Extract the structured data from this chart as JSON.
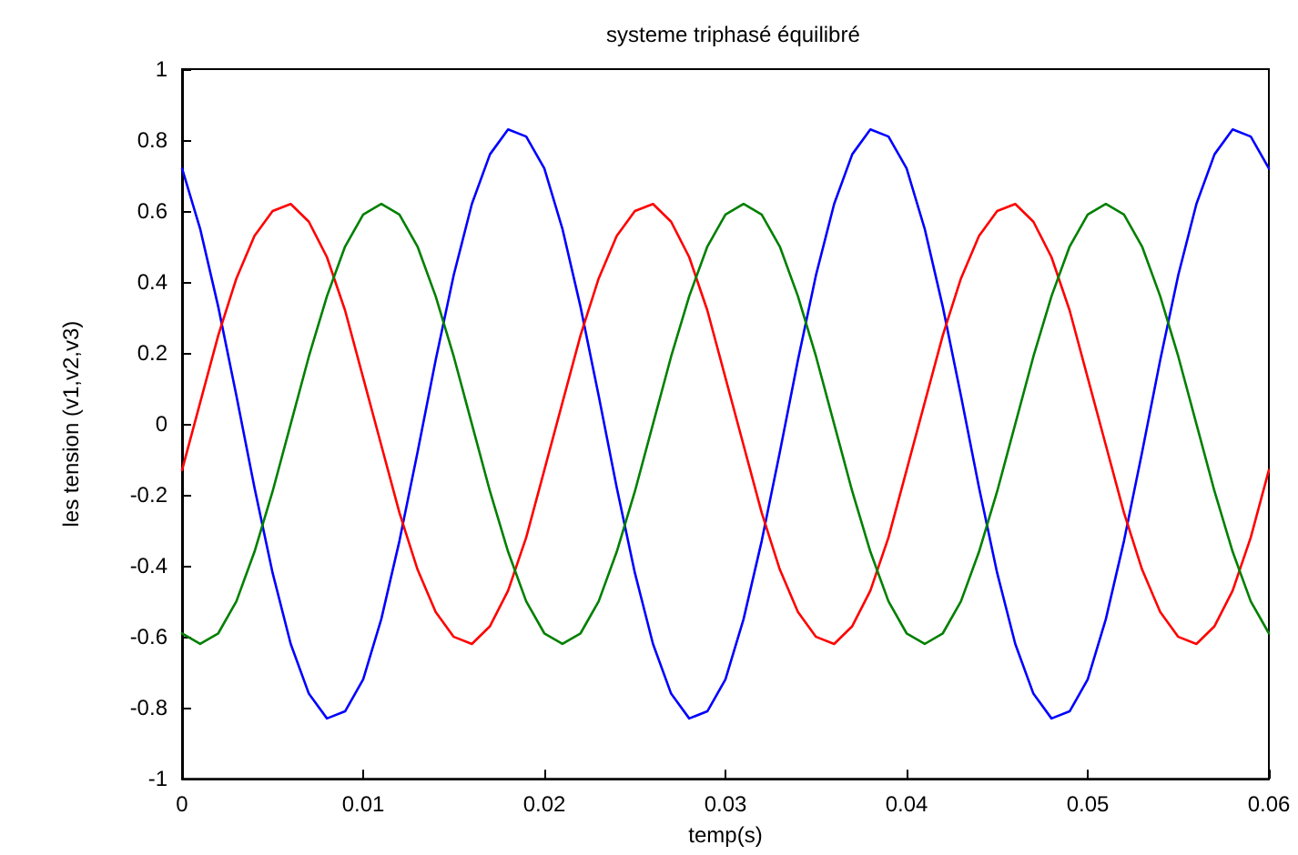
{
  "chart_data": {
    "type": "line",
    "title": "systeme triphasé équilibré",
    "xlabel": "temp(s)",
    "ylabel": "les tension (v1,v2,v3)",
    "x": [
      0,
      0.001,
      0.002,
      0.003,
      0.004,
      0.005,
      0.006,
      0.007,
      0.008,
      0.009,
      0.01,
      0.011,
      0.012,
      0.013,
      0.014,
      0.015,
      0.016,
      0.017,
      0.018,
      0.019,
      0.02,
      0.021,
      0.022,
      0.023,
      0.024,
      0.025,
      0.026,
      0.027,
      0.028,
      0.029,
      0.03,
      0.031,
      0.032,
      0.033,
      0.034,
      0.035,
      0.036,
      0.037,
      0.038,
      0.039,
      0.04,
      0.041,
      0.042,
      0.043,
      0.044,
      0.045,
      0.046,
      0.047,
      0.048,
      0.049,
      0.05,
      0.051,
      0.052,
      0.053,
      0.054,
      0.055,
      0.056,
      0.057,
      0.058,
      0.059,
      0.06
    ],
    "series": [
      {
        "color": "#0000ff",
        "values": [
          0.72,
          0.55,
          0.33,
          0.08,
          -0.18,
          -0.42,
          -0.62,
          -0.76,
          -0.83,
          -0.81,
          -0.72,
          -0.55,
          -0.33,
          -0.08,
          0.18,
          0.42,
          0.62,
          0.76,
          0.83,
          0.81,
          0.72,
          0.55,
          0.33,
          0.08,
          -0.18,
          -0.42,
          -0.62,
          -0.76,
          -0.83,
          -0.81,
          -0.72,
          -0.55,
          -0.33,
          -0.08,
          0.18,
          0.42,
          0.62,
          0.76,
          0.83,
          0.81,
          0.72,
          0.55,
          0.33,
          0.08,
          -0.18,
          -0.42,
          -0.62,
          -0.76,
          -0.83,
          -0.81,
          -0.72,
          -0.55,
          -0.33,
          -0.08,
          0.18,
          0.42,
          0.62,
          0.76,
          0.83,
          0.81,
          0.72
        ]
      },
      {
        "color": "#ff0000",
        "values": [
          -0.13,
          0.06,
          0.25,
          0.41,
          0.53,
          0.6,
          0.62,
          0.57,
          0.47,
          0.32,
          0.13,
          -0.06,
          -0.25,
          -0.41,
          -0.53,
          -0.6,
          -0.62,
          -0.57,
          -0.47,
          -0.32,
          -0.13,
          0.06,
          0.25,
          0.41,
          0.53,
          0.6,
          0.62,
          0.57,
          0.47,
          0.32,
          0.13,
          -0.06,
          -0.25,
          -0.41,
          -0.53,
          -0.6,
          -0.62,
          -0.57,
          -0.47,
          -0.32,
          -0.13,
          0.06,
          0.25,
          0.41,
          0.53,
          0.6,
          0.62,
          0.57,
          0.47,
          0.32,
          0.13,
          -0.06,
          -0.25,
          -0.41,
          -0.53,
          -0.6,
          -0.62,
          -0.57,
          -0.47,
          -0.32,
          -0.13
        ]
      },
      {
        "color": "#008000",
        "values": [
          -0.59,
          -0.62,
          -0.59,
          -0.5,
          -0.36,
          -0.19,
          0,
          0.19,
          0.36,
          0.5,
          0.59,
          0.62,
          0.59,
          0.5,
          0.36,
          0.19,
          0,
          -0.19,
          -0.36,
          -0.5,
          -0.59,
          -0.62,
          -0.59,
          -0.5,
          -0.36,
          -0.19,
          0,
          0.19,
          0.36,
          0.5,
          0.59,
          0.62,
          0.59,
          0.5,
          0.36,
          0.19,
          0,
          -0.19,
          -0.36,
          -0.5,
          -0.59,
          -0.62,
          -0.59,
          -0.5,
          -0.36,
          -0.19,
          0,
          0.19,
          0.36,
          0.5,
          0.59,
          0.62,
          0.59,
          0.5,
          0.36,
          0.19,
          0,
          -0.19,
          -0.36,
          -0.5,
          -0.59
        ]
      }
    ],
    "xlim": [
      0,
      0.06
    ],
    "xticks": [
      0,
      0.01,
      0.02,
      0.03,
      0.04,
      0.05,
      0.06
    ],
    "ylim": [
      -1,
      1
    ],
    "yticks": [
      -1,
      -0.8,
      -0.6,
      -0.4,
      -0.2,
      0,
      0.2,
      0.4,
      0.6,
      0.8,
      1
    ],
    "grid": false,
    "marker": "none",
    "line_style": "solid"
  }
}
